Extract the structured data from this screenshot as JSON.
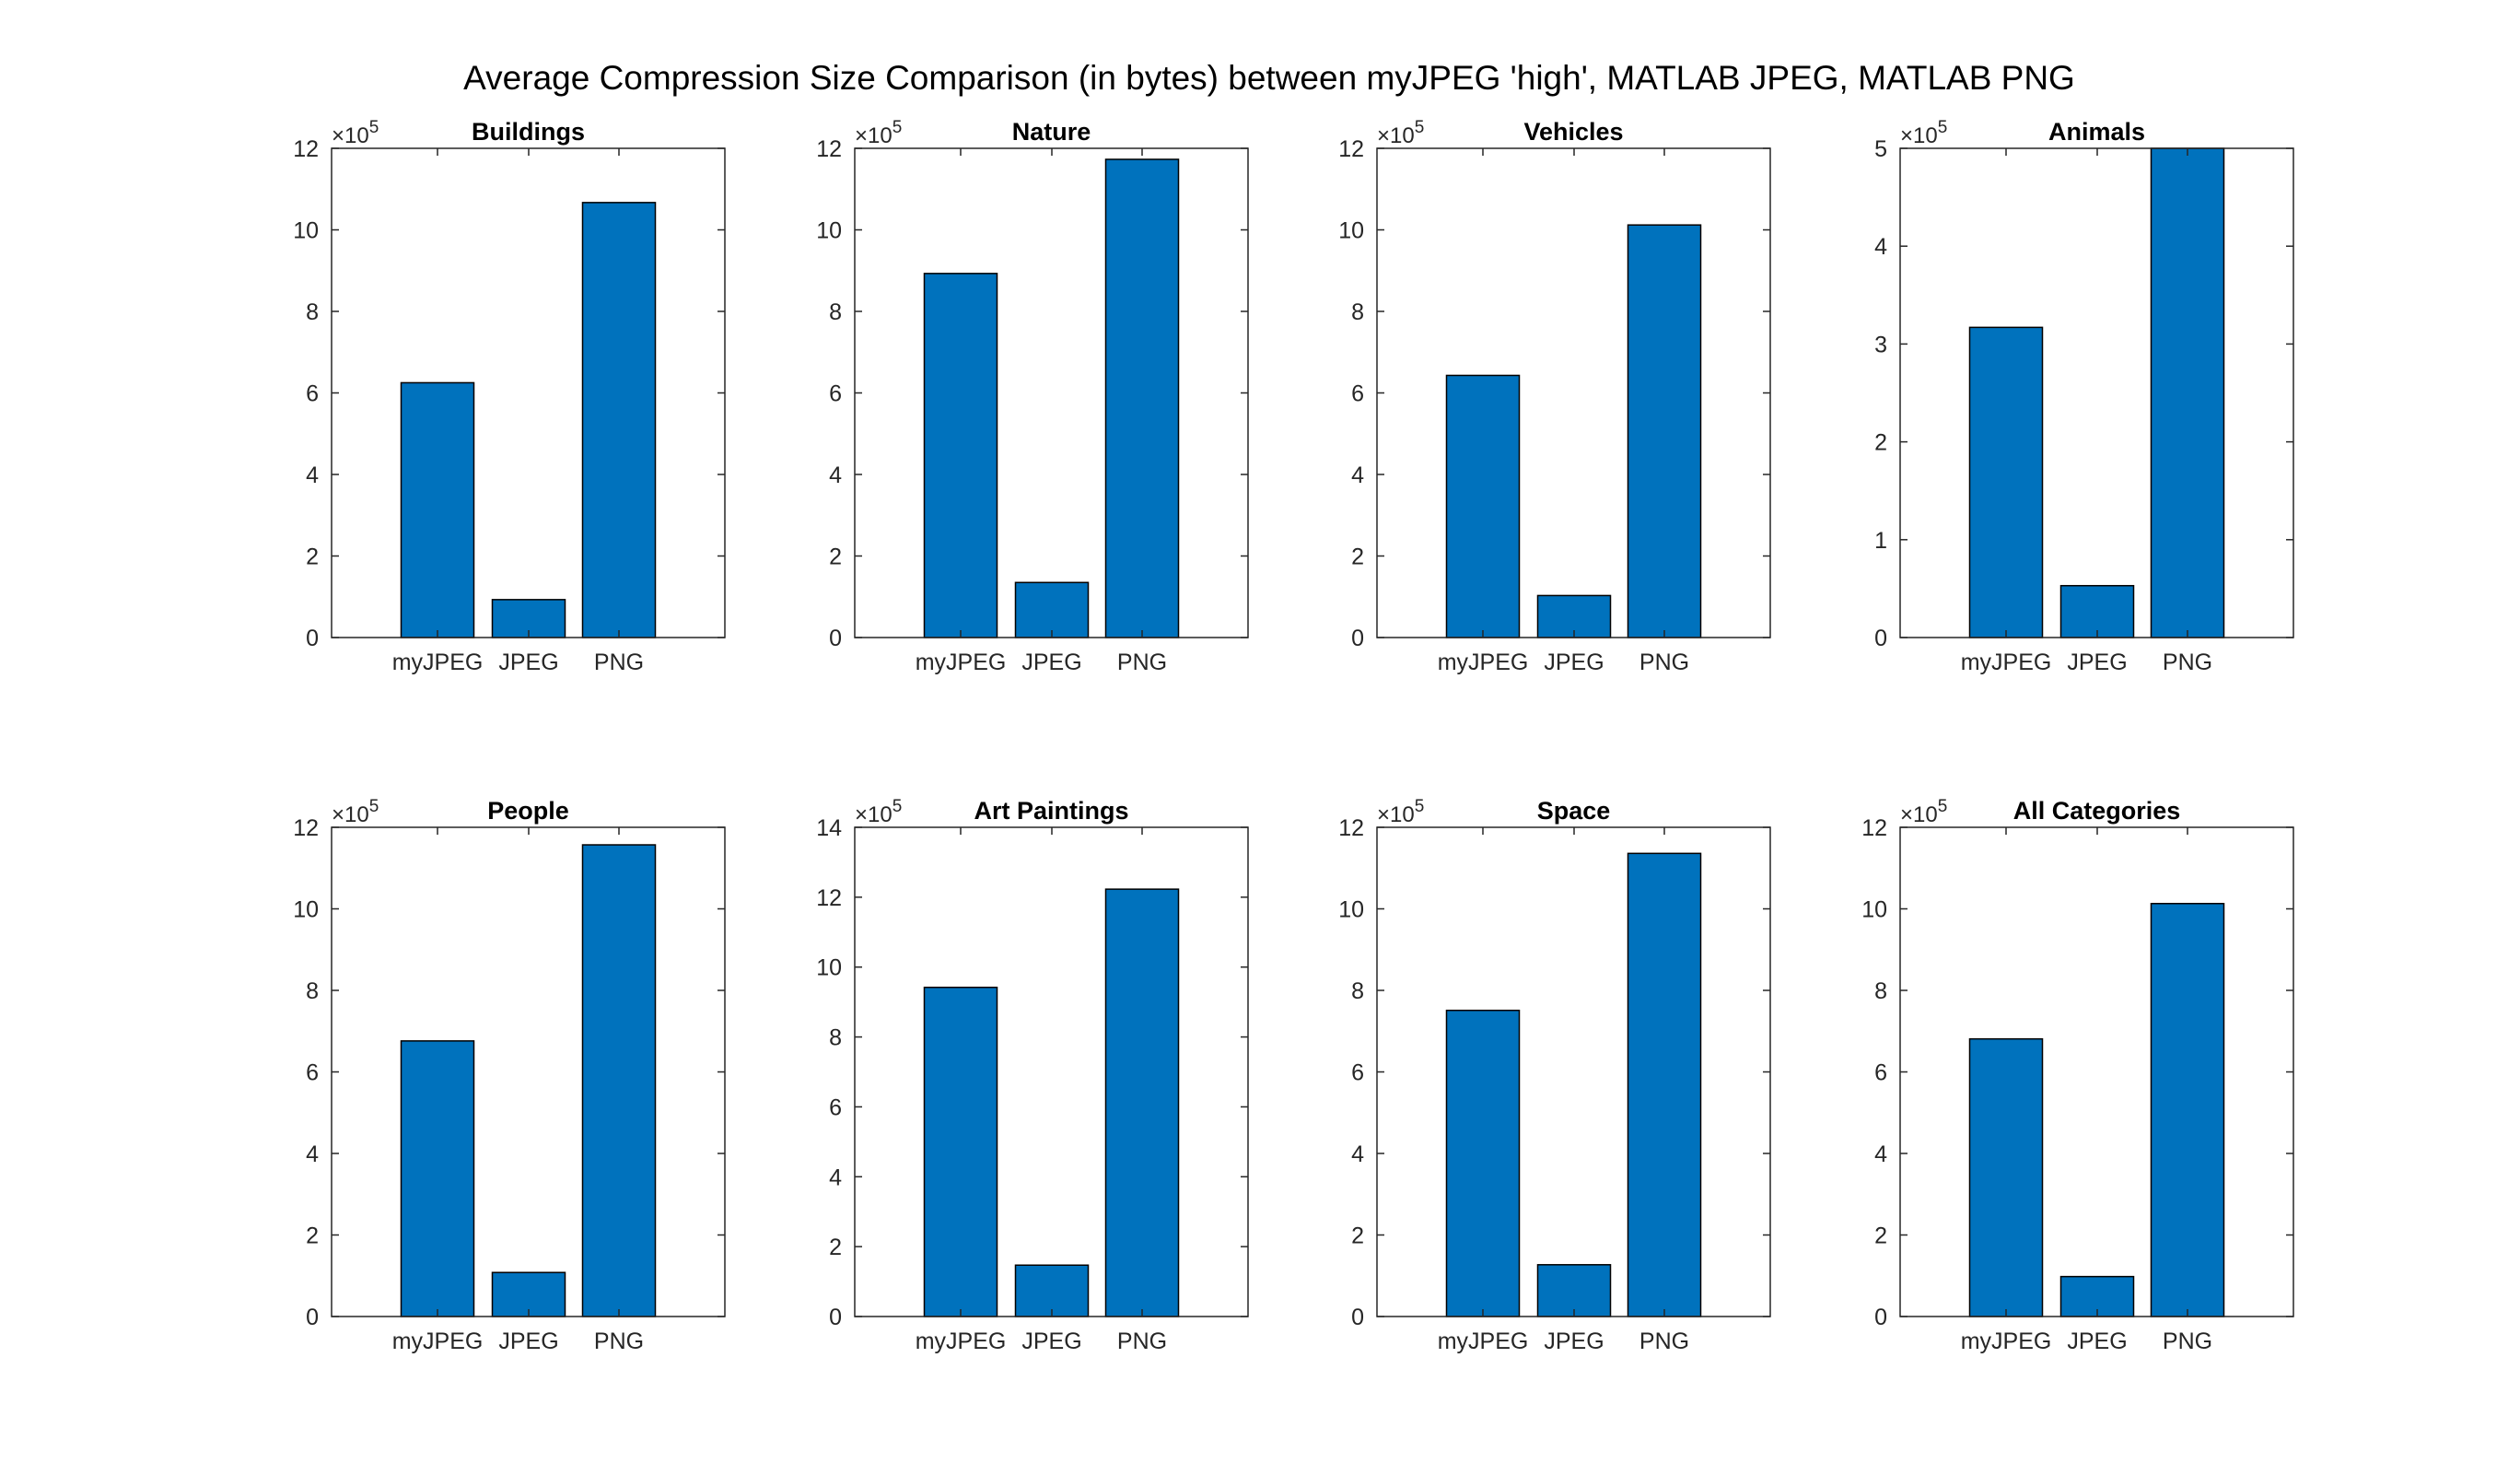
{
  "figure_title": "Average Compression Size Comparison (in bytes) between myJPEG 'high', MATLAB JPEG, MATLAB PNG",
  "colors": {
    "bar": "#0072BD",
    "axis": "#262626"
  },
  "chart_data": [
    {
      "type": "bar",
      "title": "Buildings",
      "categories": [
        "myJPEG",
        "JPEG",
        "PNG"
      ],
      "values": [
        625000,
        93000,
        1067000
      ],
      "ylim": [
        0,
        1200000
      ],
      "yticks": [
        0,
        2,
        4,
        6,
        8,
        10,
        12
      ],
      "exponent_label": "×10",
      "exponent": "5",
      "xlabel": "",
      "ylabel": ""
    },
    {
      "type": "bar",
      "title": "Nature",
      "categories": [
        "myJPEG",
        "JPEG",
        "PNG"
      ],
      "values": [
        893000,
        135000,
        1173000
      ],
      "ylim": [
        0,
        1200000
      ],
      "yticks": [
        0,
        2,
        4,
        6,
        8,
        10,
        12
      ],
      "exponent_label": "×10",
      "exponent": "5",
      "xlabel": "",
      "ylabel": ""
    },
    {
      "type": "bar",
      "title": "Vehicles",
      "categories": [
        "myJPEG",
        "JPEG",
        "PNG"
      ],
      "values": [
        643000,
        103000,
        1012000
      ],
      "ylim": [
        0,
        1200000
      ],
      "yticks": [
        0,
        2,
        4,
        6,
        8,
        10,
        12
      ],
      "exponent_label": "×10",
      "exponent": "5",
      "xlabel": "",
      "ylabel": ""
    },
    {
      "type": "bar",
      "title": "Animals",
      "categories": [
        "myJPEG",
        "JPEG",
        "PNG"
      ],
      "values": [
        317000,
        53000,
        500000
      ],
      "ylim": [
        0,
        500000
      ],
      "yticks": [
        0,
        1,
        2,
        3,
        4,
        5
      ],
      "exponent_label": "×10",
      "exponent": "5",
      "xlabel": "",
      "ylabel": ""
    },
    {
      "type": "bar",
      "title": "People",
      "categories": [
        "myJPEG",
        "JPEG",
        "PNG"
      ],
      "values": [
        676000,
        108000,
        1157000
      ],
      "ylim": [
        0,
        1200000
      ],
      "yticks": [
        0,
        2,
        4,
        6,
        8,
        10,
        12
      ],
      "exponent_label": "×10",
      "exponent": "5",
      "xlabel": "",
      "ylabel": ""
    },
    {
      "type": "bar",
      "title": "Art Paintings",
      "categories": [
        "myJPEG",
        "JPEG",
        "PNG"
      ],
      "values": [
        942000,
        147000,
        1223000
      ],
      "ylim": [
        0,
        1400000
      ],
      "yticks": [
        0,
        2,
        4,
        6,
        8,
        10,
        12,
        14
      ],
      "exponent_label": "×10",
      "exponent": "5",
      "xlabel": "",
      "ylabel": ""
    },
    {
      "type": "bar",
      "title": "Space",
      "categories": [
        "myJPEG",
        "JPEG",
        "PNG"
      ],
      "values": [
        751000,
        127000,
        1136000
      ],
      "ylim": [
        0,
        1200000
      ],
      "yticks": [
        0,
        2,
        4,
        6,
        8,
        10,
        12
      ],
      "exponent_label": "×10",
      "exponent": "5",
      "xlabel": "",
      "ylabel": ""
    },
    {
      "type": "bar",
      "title": "All Categories",
      "categories": [
        "myJPEG",
        "JPEG",
        "PNG"
      ],
      "values": [
        681000,
        98000,
        1013000
      ],
      "ylim": [
        0,
        1200000
      ],
      "yticks": [
        0,
        2,
        4,
        6,
        8,
        10,
        12
      ],
      "exponent_label": "×10",
      "exponent": "5",
      "xlabel": "",
      "ylabel": ""
    }
  ]
}
